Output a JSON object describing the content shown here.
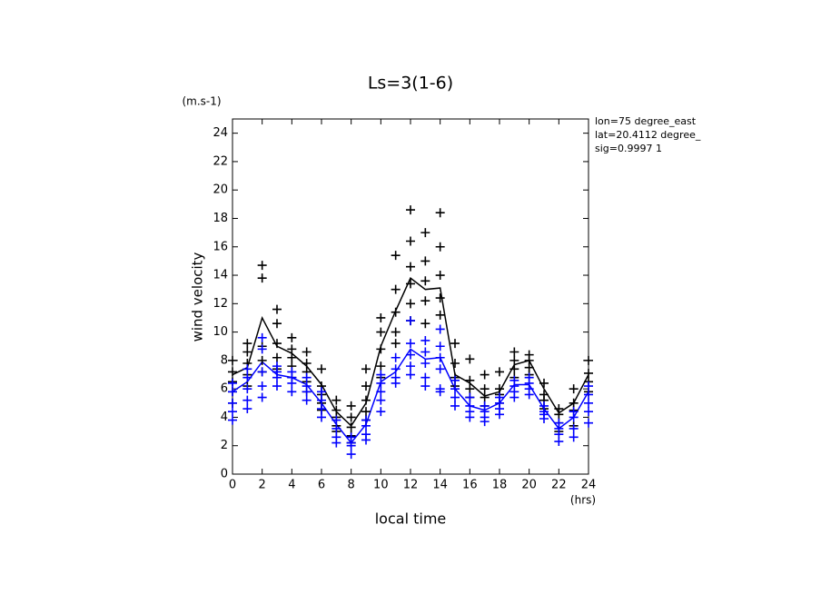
{
  "chart_data": {
    "type": "line",
    "title": "Ls=3(1-6)",
    "y_unit": "(m.s-1)",
    "y_label": "wind velocity",
    "x_label": "local time",
    "x_unit": "(hrs)",
    "annotations": [
      "lon=75 degree_east",
      "lat=20.4112 degree_",
      "sig=0.9997 1"
    ],
    "xlim": [
      0,
      24
    ],
    "xticks": [
      0,
      2,
      4,
      6,
      8,
      10,
      12,
      14,
      16,
      18,
      20,
      22,
      24
    ],
    "ylim": [
      0,
      25
    ],
    "yticks": [
      0,
      2,
      4,
      6,
      8,
      10,
      12,
      14,
      16,
      18,
      20,
      22,
      24
    ],
    "series": [
      {
        "mode": "lines",
        "color": "#000000",
        "x": [
          0,
          1,
          2,
          3,
          4,
          5,
          6,
          7,
          8,
          9,
          10,
          11,
          12,
          13,
          14,
          15,
          16,
          17,
          18,
          19,
          20,
          21,
          22,
          23,
          24
        ],
        "values": [
          7,
          7.5,
          11,
          9,
          8.5,
          7.6,
          6.3,
          4.4,
          3.4,
          5,
          9,
          11.5,
          13.8,
          13,
          13.1,
          7,
          6.4,
          5.5,
          5.8,
          7.7,
          8,
          6,
          4.3,
          5,
          7
        ]
      },
      {
        "mode": "lines",
        "color": "#0000ff",
        "x": [
          0,
          1,
          2,
          3,
          4,
          5,
          6,
          7,
          8,
          9,
          10,
          11,
          12,
          13,
          14,
          15,
          16,
          17,
          18,
          19,
          20,
          21,
          22,
          23,
          24
        ],
        "values": [
          5.8,
          6.5,
          7.9,
          7,
          6.8,
          6.3,
          5,
          3.5,
          2.2,
          3.5,
          6.5,
          7.2,
          8.8,
          8.1,
          8.2,
          6,
          4.8,
          4.5,
          5,
          6.3,
          6.3,
          4.6,
          3.2,
          4,
          5.8
        ]
      },
      {
        "mode": "markers",
        "color": "#000000",
        "x": [
          0,
          0,
          0,
          0,
          0,
          1,
          1,
          1,
          1,
          1,
          2,
          2,
          2,
          2,
          2,
          3,
          3,
          3,
          3,
          3,
          4,
          4,
          4,
          4,
          4,
          5,
          5,
          5,
          5,
          5,
          6,
          6,
          6,
          6,
          6,
          7,
          7,
          7,
          7,
          7,
          8,
          8,
          8,
          8,
          8,
          9,
          9,
          9,
          9,
          9,
          10,
          10,
          10,
          10,
          10,
          11,
          11,
          11,
          11,
          11,
          12,
          12,
          12,
          12,
          12,
          12,
          13,
          13,
          13,
          13,
          13,
          14,
          14,
          14,
          14,
          14,
          15,
          15,
          15,
          15,
          16,
          16,
          16,
          16,
          17,
          17,
          17,
          17,
          18,
          18,
          18,
          18,
          19,
          19,
          19,
          19,
          20,
          20,
          20,
          20,
          21,
          21,
          21,
          21,
          22,
          22,
          22,
          22,
          23,
          23,
          23,
          23,
          24,
          24,
          24,
          24
        ],
        "values": [
          8,
          7.2,
          6.5,
          5.8,
          5,
          9.2,
          8.6,
          7.8,
          7,
          6.2,
          14.7,
          13.8,
          9,
          8,
          7.2,
          11.6,
          10.6,
          9.2,
          8.2,
          7.4,
          9.6,
          8.8,
          8.2,
          7.6,
          6.8,
          8.6,
          7.8,
          7.2,
          6.5,
          5.8,
          7.4,
          6.2,
          5.6,
          5,
          4.5,
          5.2,
          4.5,
          4,
          3.4,
          3,
          4.8,
          4,
          3.3,
          2.7,
          2.2,
          7.4,
          6.2,
          5.2,
          4.4,
          3.8,
          11,
          10,
          8.8,
          7.6,
          6.8,
          15.4,
          13,
          11.4,
          10,
          9.2,
          18.6,
          16.4,
          14.6,
          13.4,
          12,
          10.8,
          17,
          15,
          13.6,
          12.2,
          10.6,
          18.4,
          16,
          14,
          12.4,
          11.2,
          9.2,
          7.8,
          6.8,
          6.2,
          8.1,
          6.6,
          6,
          5.4,
          7,
          6,
          5.4,
          4.8,
          7.2,
          6,
          5.6,
          5,
          8.6,
          8,
          7.4,
          6.8,
          8.4,
          8,
          7.5,
          7,
          6.4,
          5.6,
          5.2,
          4.6,
          4.6,
          4.2,
          3.6,
          3,
          6,
          5,
          4.5,
          3.4,
          8,
          7.1,
          6.5,
          5.8
        ]
      },
      {
        "mode": "markers",
        "color": "#0000ff",
        "x": [
          0,
          0,
          0,
          0,
          0,
          1,
          1,
          1,
          1,
          1,
          2,
          2,
          2,
          2,
          2,
          3,
          3,
          3,
          3,
          4,
          4,
          4,
          4,
          5,
          5,
          5,
          5,
          6,
          6,
          6,
          6,
          7,
          7,
          7,
          7,
          8,
          8,
          8,
          8,
          9,
          9,
          9,
          9,
          10,
          10,
          10,
          10,
          10,
          11,
          11,
          11,
          11,
          12,
          12,
          12,
          12,
          12,
          13,
          13,
          13,
          13,
          13,
          14,
          14,
          14,
          14,
          14,
          14,
          15,
          15,
          15,
          15,
          16,
          16,
          16,
          16,
          17,
          17,
          17,
          17,
          18,
          18,
          18,
          18,
          19,
          19,
          19,
          19,
          20,
          20,
          20,
          20,
          21,
          21,
          21,
          21,
          22,
          22,
          22,
          22,
          23,
          23,
          23,
          23,
          24,
          24,
          24,
          24,
          24
        ],
        "values": [
          6.4,
          5.8,
          5,
          4.4,
          3.8,
          7.4,
          6.8,
          6,
          5.2,
          4.6,
          9.6,
          8.8,
          7.2,
          6.2,
          5.4,
          7.6,
          7.2,
          6.8,
          6.2,
          7.2,
          6.8,
          6.4,
          5.8,
          6.8,
          6.2,
          5.8,
          5.2,
          5.8,
          5.2,
          4.6,
          4,
          3.8,
          3.2,
          2.6,
          2.2,
          2.6,
          2.2,
          2,
          1.4,
          3.8,
          3.4,
          2.8,
          2.4,
          7,
          6.4,
          5.8,
          5.2,
          4.4,
          8.2,
          7.4,
          6.8,
          6.4,
          10.8,
          9.2,
          8.4,
          7.6,
          7,
          9.4,
          8.6,
          7.8,
          6.8,
          6.2,
          10.2,
          9,
          8.2,
          7.4,
          6,
          5.8,
          6.6,
          6,
          5.4,
          4.8,
          5.4,
          4.8,
          4.4,
          4,
          4.8,
          4.4,
          4,
          3.7,
          5.4,
          5,
          4.6,
          4.2,
          6.6,
          6.2,
          5.8,
          5.4,
          6.8,
          6.4,
          6,
          5.6,
          4.8,
          4.4,
          4.2,
          3.9,
          3.6,
          3.2,
          2.8,
          2.3,
          4.4,
          4,
          3.2,
          2.6,
          6.2,
          5.6,
          5,
          4.4,
          3.6
        ]
      }
    ]
  }
}
